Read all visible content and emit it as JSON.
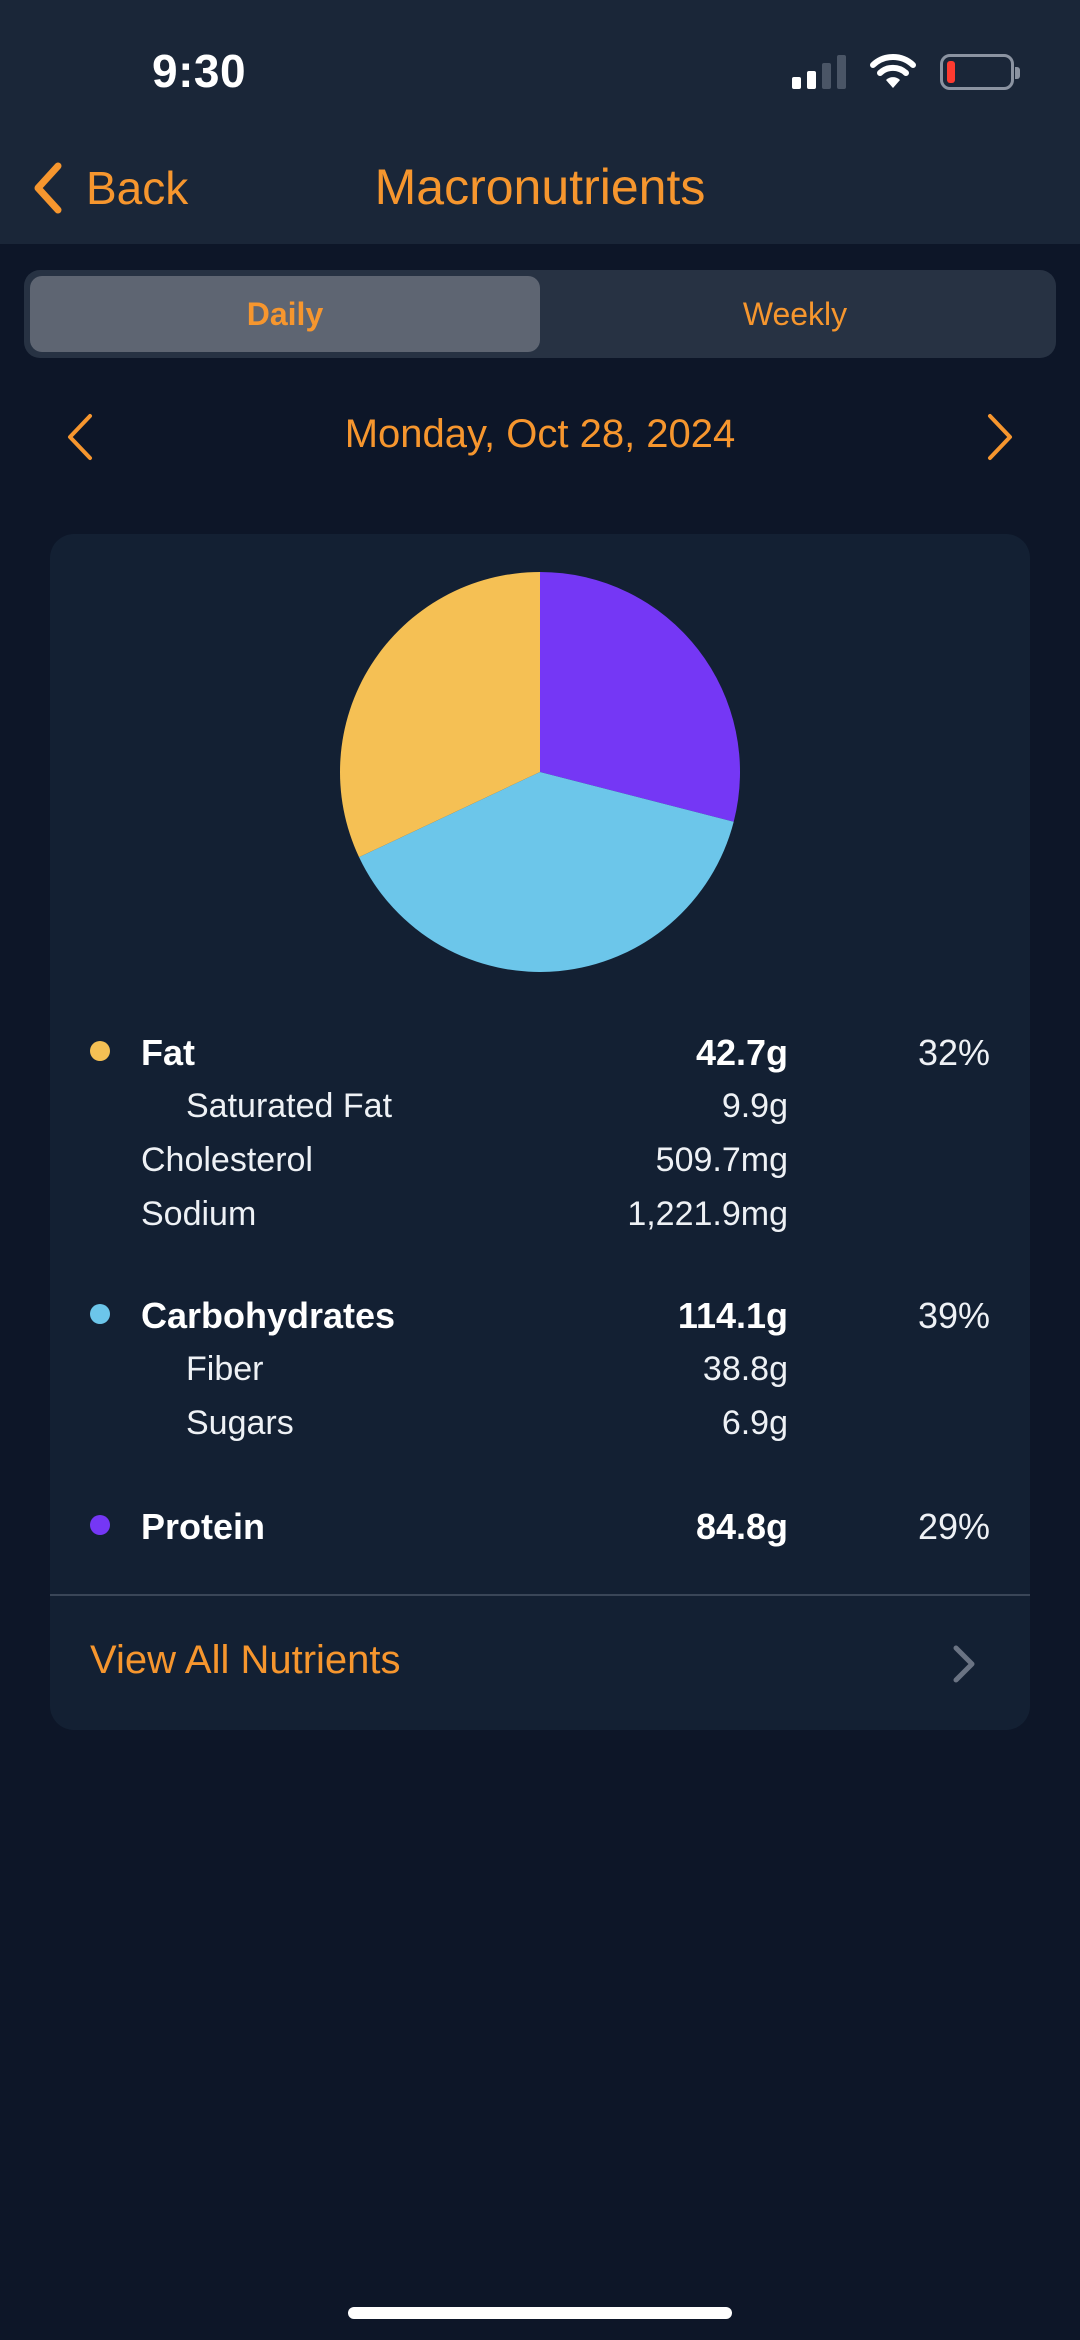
{
  "status_bar": {
    "time": "9:30"
  },
  "nav": {
    "back_label": "Back",
    "title": "Macronutrients"
  },
  "segment": {
    "options": [
      "Daily",
      "Weekly"
    ],
    "selected": "Daily"
  },
  "date": {
    "label": "Monday, Oct 28, 2024"
  },
  "colors": {
    "accent": "#f6962e",
    "fat": "#f5c054",
    "carbohydrates": "#6cc6ea",
    "protein": "#7537f5"
  },
  "chart_data": {
    "type": "pie",
    "slices": [
      {
        "label": "Fat",
        "value": 32,
        "color": "#f5c054"
      },
      {
        "label": "Carbohydrates",
        "value": 39,
        "color": "#6cc6ea"
      },
      {
        "label": "Protein",
        "value": 29,
        "color": "#7537f5"
      }
    ]
  },
  "nutrients": {
    "fat": {
      "name": "Fat",
      "amount": "42.7g",
      "percent": "32%"
    },
    "saturated_fat": {
      "name": "Saturated Fat",
      "amount": "9.9g"
    },
    "cholesterol": {
      "name": "Cholesterol",
      "amount": "509.7mg"
    },
    "sodium": {
      "name": "Sodium",
      "amount": "1,221.9mg"
    },
    "carbohydrates": {
      "name": "Carbohydrates",
      "amount": "114.1g",
      "percent": "39%"
    },
    "fiber": {
      "name": "Fiber",
      "amount": "38.8g"
    },
    "sugars": {
      "name": "Sugars",
      "amount": "6.9g"
    },
    "protein": {
      "name": "Protein",
      "amount": "84.8g",
      "percent": "29%"
    }
  },
  "view_all": {
    "label": "View All Nutrients"
  }
}
